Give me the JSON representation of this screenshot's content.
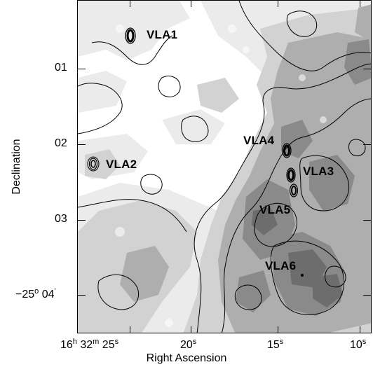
{
  "figure": {
    "xlabel": "Right Ascension",
    "ylabel": "Declination",
    "x_ticks": [
      {
        "h": "16",
        "m": "32",
        "s": "25"
      },
      {
        "s": "20"
      },
      {
        "s": "15"
      },
      {
        "s": "10"
      }
    ],
    "y_ticks": [
      {
        "deg": "",
        "arcmin": "01"
      },
      {
        "deg": "",
        "arcmin": "02"
      },
      {
        "deg": "",
        "arcmin": "03"
      },
      {
        "deg": "−25",
        "arcmin": "04"
      }
    ],
    "x_tick_text": [
      "16",
      "h",
      "32",
      "m",
      "25",
      "s",
      "20",
      "s",
      "15",
      "s",
      "10",
      "s"
    ],
    "y_tick_text": [
      "01",
      "02",
      "03",
      "−25",
      "o",
      "04",
      "'"
    ],
    "sources": [
      {
        "name": "VLA1"
      },
      {
        "name": "VLA2"
      },
      {
        "name": "VLA3"
      },
      {
        "name": "VLA4"
      },
      {
        "name": "VLA5"
      },
      {
        "name": "VLA6"
      }
    ],
    "colors": {
      "background": "#ffffff",
      "lightest_gray": "#e6e6e6",
      "light_gray": "#cfcfcf",
      "mid_gray": "#a9a9a9",
      "dark_gray": "#7b7b7b",
      "contour": "#000000"
    }
  }
}
